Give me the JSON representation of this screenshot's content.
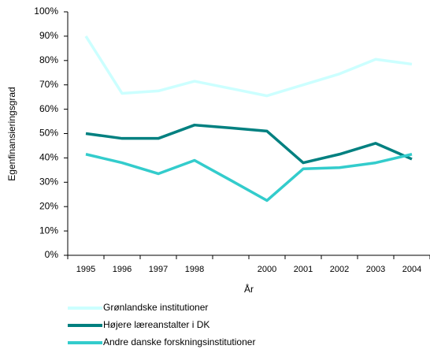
{
  "chart_data": {
    "type": "line",
    "y_label": "Egenfinansieringsgrad",
    "x_label": "År",
    "categories": [
      "1995",
      "1996",
      "1997",
      "1998",
      null,
      "2000",
      "2001",
      "2002",
      "2003",
      "2004"
    ],
    "series": [
      {
        "name": "Grønlandske institutioner",
        "color": "#ccffff",
        "values": [
          90,
          66.5,
          67.5,
          71.5,
          68.5,
          65.5,
          70,
          74.5,
          80.5,
          78.5
        ]
      },
      {
        "name": "Højere læreanstalter i DK",
        "color": "#008080",
        "values": [
          50,
          48,
          48,
          53.5,
          52.3,
          51,
          38,
          41.5,
          46,
          39.5
        ]
      },
      {
        "name": "Andre danske forskningsinstitutioner",
        "color": "#33cccc",
        "values": [
          41.5,
          38,
          33.5,
          39,
          30.8,
          22.5,
          35.5,
          36,
          38,
          41.5
        ]
      }
    ],
    "ylim": [
      0,
      100
    ],
    "yticks": [
      {
        "value": 0,
        "label": "0%"
      },
      {
        "value": 10,
        "label": "10%"
      },
      {
        "value": 20,
        "label": "20%"
      },
      {
        "value": 30,
        "label": "30%"
      },
      {
        "value": 40,
        "label": "40%"
      },
      {
        "value": 50,
        "label": "50%"
      },
      {
        "value": 60,
        "label": "60%"
      },
      {
        "value": 70,
        "label": "70%"
      },
      {
        "value": 80,
        "label": "80%"
      },
      {
        "value": 90,
        "label": "90%"
      },
      {
        "value": 100,
        "label": "100%"
      }
    ]
  }
}
